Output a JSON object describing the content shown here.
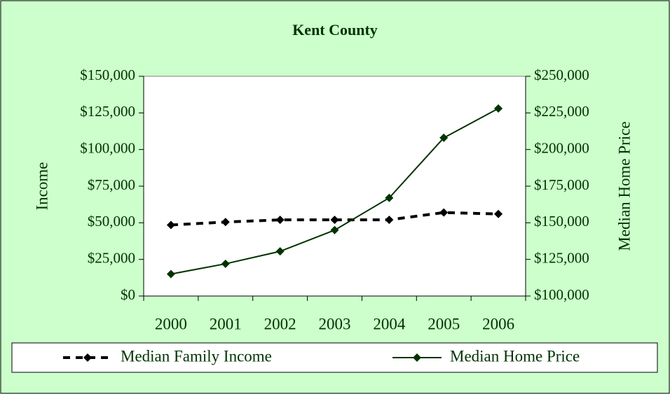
{
  "chart_data": {
    "type": "line",
    "title": "Kent County",
    "categories": [
      "2000",
      "2001",
      "2002",
      "2003",
      "2004",
      "2005",
      "2006"
    ],
    "y_label": "Income",
    "y2_label": "Median Home Price",
    "ylim": [
      0,
      150000
    ],
    "yticks": [
      {
        "value": 0,
        "label": "$0"
      },
      {
        "value": 25000,
        "label": "$25,000"
      },
      {
        "value": 50000,
        "label": "$50,000"
      },
      {
        "value": 75000,
        "label": "$75,000"
      },
      {
        "value": 100000,
        "label": "$100,000"
      },
      {
        "value": 125000,
        "label": "$125,000"
      },
      {
        "value": 150000,
        "label": "$150,000"
      }
    ],
    "y2lim": [
      100000,
      250000
    ],
    "y2ticks": [
      {
        "value": 100000,
        "label": "$100,000"
      },
      {
        "value": 125000,
        "label": "$125,000"
      },
      {
        "value": 150000,
        "label": "$150,000"
      },
      {
        "value": 175000,
        "label": "$175,000"
      },
      {
        "value": 200000,
        "label": "$200,000"
      },
      {
        "value": 225000,
        "label": "$225,000"
      },
      {
        "value": 250000,
        "label": "$250,000"
      }
    ],
    "grid": false,
    "legend": "bottom",
    "series": [
      {
        "name": "Median Family Income",
        "color": "#000000",
        "dashed": true,
        "values": [
          48500,
          50500,
          52000,
          52000,
          52000,
          57000,
          56000
        ]
      },
      {
        "name": "Median Home Price",
        "color": "#003300",
        "axis": "y2",
        "dashed": false,
        "values": [
          115000,
          122000,
          130500,
          145000,
          167000,
          208000,
          228000
        ]
      }
    ]
  }
}
